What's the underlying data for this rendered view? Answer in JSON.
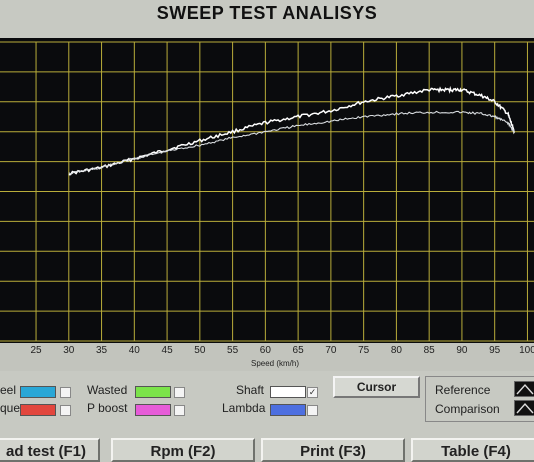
{
  "title": "SWEEP TEST ANALISYS",
  "chart_data": {
    "type": "line",
    "xlabel": "Speed (km/h)",
    "x_ticks": [
      25,
      30,
      35,
      40,
      45,
      50,
      55,
      60,
      65,
      70,
      75,
      80,
      85,
      90,
      95,
      100
    ],
    "xlim": [
      19.5,
      101
    ],
    "ylim": [
      0,
      1
    ],
    "grid": true,
    "series": [
      {
        "name": "Shaft",
        "color": "#ffffff",
        "x": [
          30,
          35,
          40,
          45,
          50,
          55,
          60,
          65,
          70,
          75,
          80,
          85,
          88,
          90,
          93,
          95,
          97,
          98
        ],
        "values": [
          0.56,
          0.58,
          0.61,
          0.64,
          0.67,
          0.7,
          0.73,
          0.75,
          0.77,
          0.8,
          0.82,
          0.84,
          0.84,
          0.84,
          0.82,
          0.8,
          0.76,
          0.7
        ]
      },
      {
        "name": "Comparison",
        "color": "#d8dcdf",
        "x": [
          30,
          35,
          40,
          45,
          50,
          55,
          60,
          65,
          70,
          75,
          80,
          85,
          90,
          93,
          95,
          97,
          98
        ],
        "values": [
          0.56,
          0.58,
          0.61,
          0.635,
          0.655,
          0.68,
          0.7,
          0.72,
          0.735,
          0.75,
          0.76,
          0.765,
          0.765,
          0.76,
          0.75,
          0.73,
          0.7
        ]
      }
    ]
  },
  "legend": {
    "left_items": [
      {
        "label": "eel",
        "color": "#2aa7d6"
      },
      {
        "label": "que",
        "color": "#e2463d"
      }
    ],
    "middle_items": [
      {
        "label": "Wasted",
        "color": "#7be34a"
      },
      {
        "label": "P boost",
        "color": "#e65bd8"
      }
    ],
    "right_items": [
      {
        "label": "Shaft",
        "color": "#ffffff",
        "checked": "✓"
      },
      {
        "label": "Lambda",
        "color": "#4d6fe0"
      }
    ]
  },
  "cursor_button": "Cursor",
  "ref_panel": {
    "reference": "Reference",
    "comparison": "Comparison"
  },
  "fkeys": [
    "ad test (F1)",
    "Rpm (F2)",
    "Print (F3)",
    "Table (F4)"
  ]
}
